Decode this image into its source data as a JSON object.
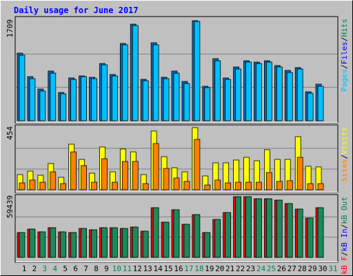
{
  "title": "Daily usage for June 2017",
  "categories": [
    "1",
    "2",
    "3",
    "4",
    "5",
    "6",
    "7",
    "8",
    "9",
    "10",
    "11",
    "12",
    "13",
    "14",
    "15",
    "16",
    "17",
    "18",
    "19",
    "20",
    "21",
    "22",
    "23",
    "24",
    "25",
    "26",
    "27",
    "28",
    "29",
    "30",
    "31"
  ],
  "category_colors": [
    "#000000",
    "#000000",
    "#00805c",
    "#00805c",
    "#000000",
    "#000000",
    "#000000",
    "#000000",
    "#000000",
    "#00805c",
    "#00805c",
    "#000000",
    "#000000",
    "#000000",
    "#000000",
    "#000000",
    "#00805c",
    "#00805c",
    "#000000",
    "#000000",
    "#000000",
    "#000000",
    "#000000",
    "#00805c",
    "#00805c",
    "#000000",
    "#000000",
    "#000000",
    "#000000",
    "#000000",
    "#00805c"
  ],
  "chart_data": [
    {
      "type": "bar",
      "ylim": [
        0,
        1709
      ],
      "yticks": [
        1709
      ],
      "separator": "/",
      "legend": [
        {
          "label": "Pages",
          "color": "#00c0ff"
        },
        {
          "label": "Files",
          "color": "#0000ff"
        },
        {
          "label": "Hits",
          "color": "#00805c"
        }
      ],
      "series": [
        {
          "color": "#1068b0",
          "values": [
            1155,
            754,
            542,
            849,
            483,
            731,
            766,
            743,
            978,
            790,
            1320,
            1650,
            707,
            1332,
            743,
            849,
            672,
            1709,
            589,
            1061,
            731,
            919,
            1025,
            1002,
            1025,
            943,
            860,
            908,
            495,
            625,
            null
          ]
        },
        {
          "color": "#00c0ff",
          "values": [
            1120,
            719,
            507,
            813,
            460,
            707,
            754,
            719,
            955,
            766,
            1297,
            1627,
            684,
            1297,
            719,
            813,
            636,
            1697,
            566,
            1025,
            707,
            884,
            1002,
            978,
            1002,
            919,
            825,
            884,
            471,
            589,
            null
          ]
        }
      ]
    },
    {
      "type": "bar",
      "ylim": [
        0,
        454
      ],
      "yticks": [
        454
      ],
      "separator": "/",
      "legend": [
        {
          "label": "Sites",
          "color": "#ff8000"
        },
        {
          "label": "Visits",
          "color": "#ffff00"
        }
      ],
      "series": [
        {
          "color": "#ffff00",
          "values": [
            111,
            136,
            106,
            192,
            91,
            333,
            222,
            121,
            313,
            131,
            298,
            277,
            111,
            429,
            242,
            161,
            131,
            454,
            101,
            197,
            197,
            217,
            237,
            212,
            293,
            222,
            222,
            388,
            172,
            167,
            null
          ]
        },
        {
          "color": "#ff8000",
          "values": [
            50,
            71,
            55,
            131,
            45,
            277,
            177,
            55,
            227,
            55,
            207,
            207,
            45,
            338,
            156,
            86,
            61,
            368,
            35,
            71,
            50,
            55,
            55,
            55,
            126,
            61,
            66,
            237,
            45,
            45,
            null
          ]
        }
      ]
    },
    {
      "type": "bar",
      "ylim": [
        0,
        59439
      ],
      "yticks": [
        59439
      ],
      "separator": "/",
      "legend": [
        {
          "label": "kB F",
          "color": "#ff0000"
        },
        {
          "label": "kB In",
          "color": "#0000ff"
        },
        {
          "label": "kB Out",
          "color": "#00805c"
        }
      ],
      "series": [
        {
          "color": "#e01010",
          "values": [
            24316,
            27693,
            24991,
            29044,
            24991,
            24316,
            28368,
            27017,
            29044,
            29044,
            28368,
            29719,
            25666,
            48632,
            34447,
            46605,
            32421,
            41877,
            24316,
            37149,
            43904,
            59439,
            59439,
            57413,
            57413,
            56062,
            52684,
            47280,
            38500,
            48632,
            null
          ]
        },
        {
          "color": "#1a8a5a",
          "values": [
            24316,
            27693,
            24991,
            29044,
            24991,
            24316,
            28368,
            27017,
            29044,
            29044,
            28368,
            29719,
            25666,
            48632,
            34447,
            46605,
            32421,
            41877,
            24316,
            37149,
            43904,
            59439,
            59439,
            57413,
            57413,
            56062,
            52684,
            47280,
            38500,
            48632,
            null
          ]
        }
      ]
    }
  ]
}
